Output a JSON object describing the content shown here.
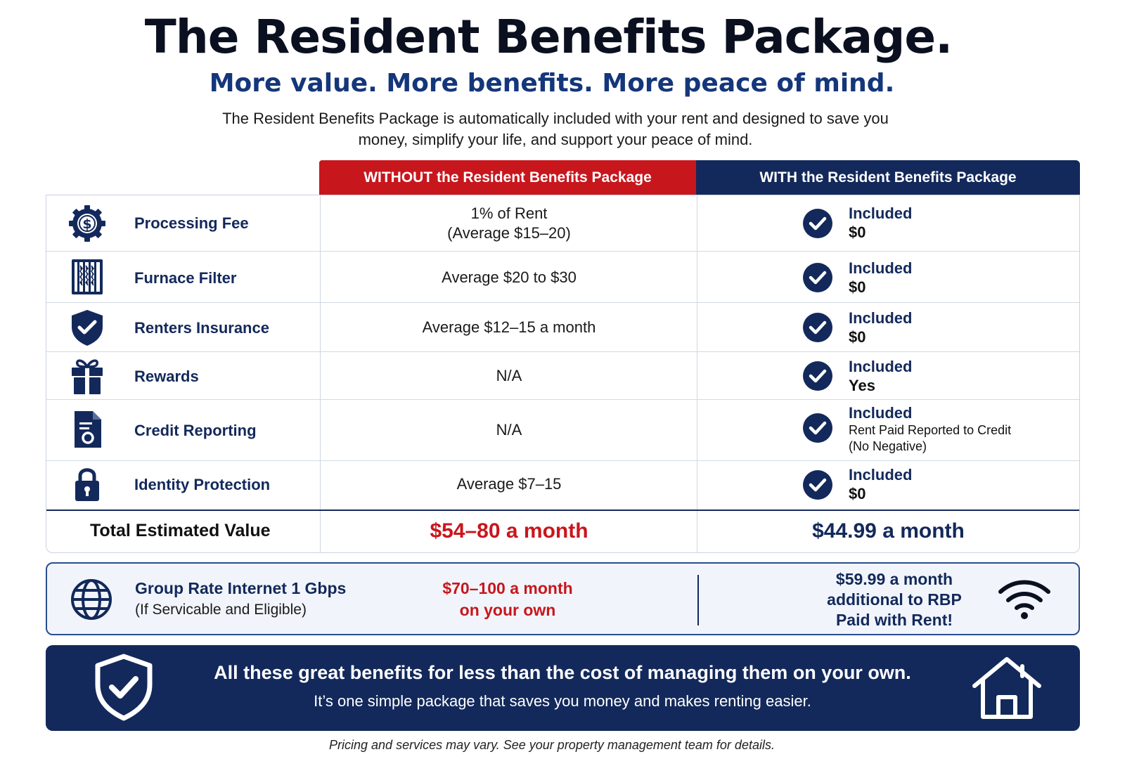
{
  "header": {
    "title": "The Resident Benefits Package.",
    "subtitle": "More value. More benefits. More peace of mind.",
    "intro": "The Resident Benefits Package is automatically included with your rent and designed to save you money, simplify your life, and support your peace of mind."
  },
  "table": {
    "col_without": "WITHOUT the Resident Benefits Package",
    "col_with": "WITH the Resident Benefits Package",
    "rows": [
      {
        "icon": "dollar-gear-icon",
        "feature": "Processing Fee",
        "without_line1": "1% of Rent",
        "without_line2": "(Average $15–20)",
        "with_status": "Included",
        "with_value": "$0"
      },
      {
        "icon": "filter-icon",
        "feature": "Furnace Filter",
        "without_line1": "Average $20 to $30",
        "with_status": "Included",
        "with_value": "$0"
      },
      {
        "icon": "shield-check-icon",
        "feature": "Renters Insurance",
        "without_line1": "Average $12–15 a month",
        "with_status": "Included",
        "with_value": "$0"
      },
      {
        "icon": "gift-icon",
        "feature": "Rewards",
        "without_line1": "N/A",
        "with_status": "Included",
        "with_value": "Yes"
      },
      {
        "icon": "credit-report-icon",
        "feature": "Credit Reporting",
        "without_line1": "N/A",
        "with_status": "Included",
        "with_value_line1": "Rent Paid Reported to Credit",
        "with_value_line2": "(No Negative)"
      },
      {
        "icon": "lock-icon",
        "feature": "Identity Protection",
        "without_line1": "Average $7–15",
        "with_status": "Included",
        "with_value": "$0"
      }
    ],
    "total": {
      "label": "Total Estimated Value",
      "without": "$54–80 a month",
      "with": "$44.99 a month"
    }
  },
  "internet": {
    "name": "Group Rate Internet 1 Gbps",
    "note": "(If Servicable and Eligible)",
    "own_line1": "$70–100 a month",
    "own_line2": "on your own",
    "rbp_line1": "$59.99 a month",
    "rbp_line2": "additional to RBP",
    "rbp_line3": "Paid with Rent!"
  },
  "banner": {
    "headline": "All these great benefits for less than the cost of managing them on your own.",
    "sub": "It’s one simple package that saves you money and makes renting easier."
  },
  "footer": "Pricing and services may vary. See your property management team for details.",
  "colors": {
    "navy": "#13295b",
    "red": "#c8161d"
  }
}
